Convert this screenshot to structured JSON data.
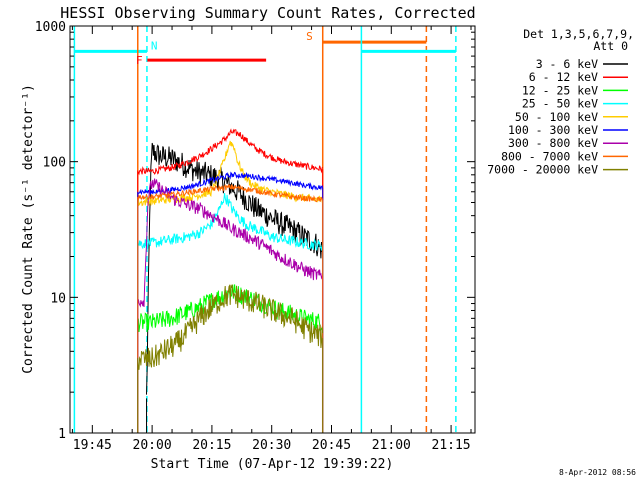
{
  "chart_data": {
    "type": "line",
    "title": "HESSI Observing Summary Count Rates, Corrected",
    "xlabel": "Start Time (07-Apr-12 19:39:22)",
    "ylabel": "Corrected Count Rate (s⁻¹ detector⁻¹)",
    "footer": "8-Apr-2012 08:56",
    "x_ticks": [
      "19:45",
      "20:00",
      "20:15",
      "20:30",
      "20:45",
      "21:00",
      "21:15"
    ],
    "x_tick_minutes": [
      45,
      60,
      75,
      90,
      105,
      120,
      135
    ],
    "x_range_minutes": [
      39.4,
      141
    ],
    "x_unit": "minutes after 19:00 UT",
    "y_scale": "log",
    "ylim": [
      1,
      1000
    ],
    "y_ticks": [
      "1",
      "10",
      "100",
      "1000"
    ],
    "y_tick_values": [
      1,
      10,
      100,
      1000
    ],
    "legend": {
      "header": [
        "Det 1,3,5,6,7,9,",
        "Att 0"
      ],
      "position": "top-right outside plot"
    },
    "series": [
      {
        "name": "3 - 6 keV",
        "color": "#000000",
        "x": [
          58.6,
          59.5,
          60,
          62,
          65,
          68,
          71,
          74,
          77,
          80,
          83,
          86,
          89,
          92,
          95,
          98,
          101,
          102.8
        ],
        "y": [
          1.8,
          60,
          120,
          110,
          105,
          95,
          85,
          80,
          75,
          65,
          55,
          45,
          40,
          35,
          32,
          28,
          25,
          22
        ]
      },
      {
        "name": "6 - 12 keV",
        "color": "#ff0000",
        "x": [
          56.4,
          60,
          63,
          66,
          69,
          72,
          75,
          78,
          80,
          82,
          84,
          86,
          88,
          90,
          92,
          95,
          98,
          102.8
        ],
        "y": [
          85,
          85,
          88,
          92,
          100,
          110,
          125,
          145,
          165,
          160,
          140,
          125,
          115,
          108,
          102,
          97,
          93,
          88
        ]
      },
      {
        "name": "12 - 25 keV",
        "color": "#00ff00",
        "x": [
          56.4,
          60,
          63,
          66,
          69,
          72,
          75,
          78,
          80,
          82,
          84,
          86,
          88,
          90,
          92,
          95,
          98,
          102.8
        ],
        "y": [
          6.5,
          6.5,
          6.8,
          7.2,
          7.8,
          8.5,
          9.5,
          10.5,
          11,
          10.5,
          10,
          9.5,
          9,
          8.5,
          8,
          7.5,
          7,
          6.5
        ]
      },
      {
        "name": "25 - 50 keV",
        "color": "#00ffff",
        "x": [
          56.4,
          60,
          63,
          66,
          69,
          72,
          75,
          77,
          78,
          79,
          80,
          82,
          84,
          86,
          88,
          90,
          92,
          95,
          98,
          102.8
        ],
        "y": [
          25,
          25,
          26,
          27,
          28,
          30,
          35,
          45,
          55,
          52,
          45,
          38,
          34,
          32,
          30,
          28,
          27,
          26,
          25,
          24
        ]
      },
      {
        "name": "50 - 100 keV",
        "color": "#ffcc00",
        "x": [
          56.4,
          60,
          65,
          70,
          75,
          78,
          79.5,
          80.5,
          81.5,
          83,
          85,
          88,
          92,
          96,
          102.8
        ],
        "y": [
          50,
          51,
          53,
          55,
          60,
          100,
          140,
          130,
          100,
          80,
          68,
          62,
          58,
          55,
          52
        ]
      },
      {
        "name": "100 - 300 keV",
        "color": "#0000ff",
        "x": [
          56.4,
          60,
          65,
          70,
          75,
          80,
          85,
          90,
          95,
          98,
          102.8
        ],
        "y": [
          60,
          60,
          62,
          66,
          73,
          80,
          78,
          74,
          70,
          67,
          64
        ]
      },
      {
        "name": "300 - 800 keV",
        "color": "#aa00aa",
        "x": [
          56.4,
          58,
          59,
          60,
          63,
          66,
          69,
          72,
          75,
          78,
          80,
          82,
          84,
          86,
          88,
          90,
          92,
          95,
          98,
          102.8
        ],
        "y": [
          9.5,
          9.5,
          55,
          70,
          60,
          52,
          48,
          45,
          40,
          35,
          32,
          30,
          28,
          26,
          24,
          22,
          20,
          18,
          16,
          14
        ]
      },
      {
        "name": "800 - 7000 keV",
        "color": "#ff6600",
        "x": [
          56.4,
          60,
          65,
          70,
          75,
          80,
          85,
          90,
          95,
          102.8
        ],
        "y": [
          55,
          55,
          57,
          60,
          63,
          65,
          62,
          58,
          55,
          52
        ]
      },
      {
        "name": "7000 - 20000 keV",
        "color": "#808000",
        "x": [
          56.4,
          59.5,
          60,
          63,
          66,
          69,
          72,
          75,
          78,
          80,
          82,
          84,
          86,
          88,
          90,
          92,
          95,
          98,
          102.8
        ],
        "y": [
          3.5,
          3.5,
          3.5,
          4,
          4.5,
          5.5,
          7,
          8.5,
          10,
          10.5,
          10,
          9.5,
          9,
          8.5,
          8,
          7.5,
          7,
          6,
          5
        ]
      }
    ],
    "annotations": [
      {
        "label": "",
        "kind": "cyan-solid-horizontal",
        "color": "#00ffff",
        "x_from": 40.5,
        "x_to": 58.7,
        "y": 650
      },
      {
        "label": "N",
        "kind": "cyan-dashed-vertical",
        "color": "#00ffff",
        "x": 58.7
      },
      {
        "label": "F",
        "kind": "red-solid-horizontal",
        "color": "#ff0000",
        "x_from": 58.8,
        "x_to": 88.6,
        "y": 560
      },
      {
        "label": "S",
        "kind": "orange-solid-horizontal",
        "color": "#ff6600",
        "x_from": 102.8,
        "x_to": 128.8,
        "y": 760
      },
      {
        "label": "",
        "kind": "orange-solid-vertical",
        "color": "#ff6600",
        "x": 102.8
      },
      {
        "label": "",
        "kind": "orange-solid-vertical",
        "color": "#ff6600",
        "x": 56.4
      },
      {
        "label": "",
        "kind": "orange-dashed-vertical",
        "color": "#ff6600",
        "x": 128.8
      },
      {
        "label": "",
        "kind": "cyan-solid-horizontal",
        "color": "#00ffff",
        "x_from": 112.5,
        "x_to": 136.2,
        "y": 650
      },
      {
        "label": "",
        "kind": "cyan-solid-vertical",
        "color": "#00ffff",
        "x": 112.5
      },
      {
        "label": "",
        "kind": "cyan-dashed-vertical",
        "color": "#00ffff",
        "x": 136.2
      },
      {
        "label": "",
        "kind": "cyan-solid-vertical",
        "color": "#00ffff",
        "x": 40.5
      }
    ]
  }
}
